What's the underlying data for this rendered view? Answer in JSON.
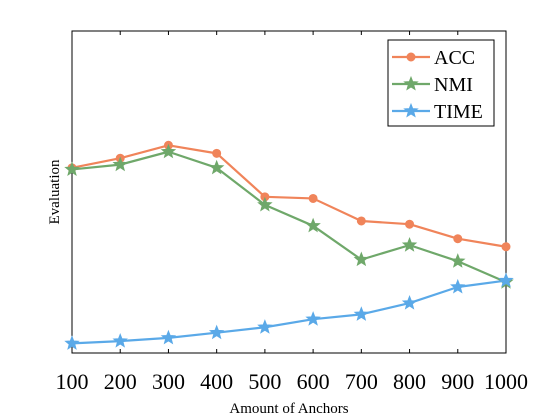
{
  "chart_data": {
    "type": "line",
    "title": "",
    "xlabel": "Amount of Anchors",
    "ylabel": "Evaluation",
    "categories": [
      "100",
      "200",
      "300",
      "400",
      "500",
      "600",
      "700",
      "800",
      "900",
      "1000"
    ],
    "x": [
      100,
      200,
      300,
      400,
      500,
      600,
      700,
      800,
      900,
      1000
    ],
    "xlim": [
      100,
      1000
    ],
    "ylim": [
      0,
      1
    ],
    "y_ticks_shown": false,
    "grid": false,
    "legend": "top-right",
    "series": [
      {
        "name": "ACC",
        "marker": "circle",
        "color": "#F0845A",
        "values": [
          0.575,
          0.605,
          0.645,
          0.62,
          0.485,
          0.48,
          0.41,
          0.4,
          0.355,
          0.33
        ]
      },
      {
        "name": "NMI",
        "marker": "star",
        "color": "#6FA86A",
        "values": [
          0.57,
          0.585,
          0.625,
          0.575,
          0.46,
          0.395,
          0.29,
          0.335,
          0.285,
          0.22
        ]
      },
      {
        "name": "TIME",
        "marker": "star",
        "color": "#5AA9E8",
        "values": [
          0.03,
          0.037,
          0.047,
          0.063,
          0.08,
          0.105,
          0.12,
          0.155,
          0.205,
          0.225
        ]
      }
    ]
  }
}
